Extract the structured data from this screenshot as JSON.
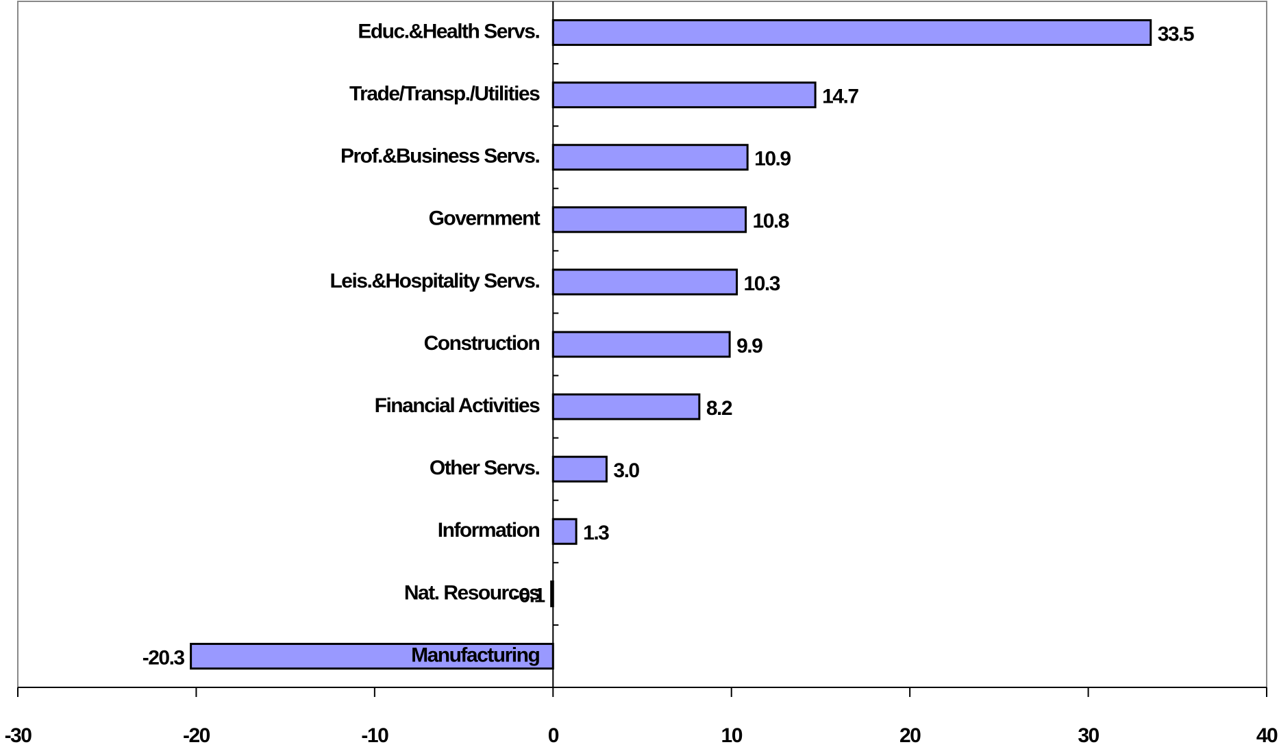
{
  "chart_data": {
    "type": "hbar",
    "categories": [
      "Educ.&Health Servs.",
      "Trade/Transp./Utilities",
      "Prof.&Business Servs.",
      "Government",
      "Leis.&Hospitality Servs.",
      "Construction",
      "Financial Activities",
      "Other Servs.",
      "Information",
      "Nat. Resources",
      "Manufacturing"
    ],
    "values": [
      33.5,
      14.7,
      10.9,
      10.8,
      10.3,
      9.9,
      8.2,
      3.0,
      1.3,
      -0.1,
      -20.3
    ],
    "value_labels": [
      "33.5",
      "14.7",
      "10.9",
      "10.8",
      "10.3",
      "9.9",
      "8.2",
      "3.0",
      "1.3",
      "-0.1",
      "-20.3"
    ],
    "color": "#9999ff",
    "xlim": [
      -30,
      40
    ],
    "xticks": [
      -30,
      -20,
      -10,
      0,
      10,
      20,
      30,
      40
    ]
  }
}
